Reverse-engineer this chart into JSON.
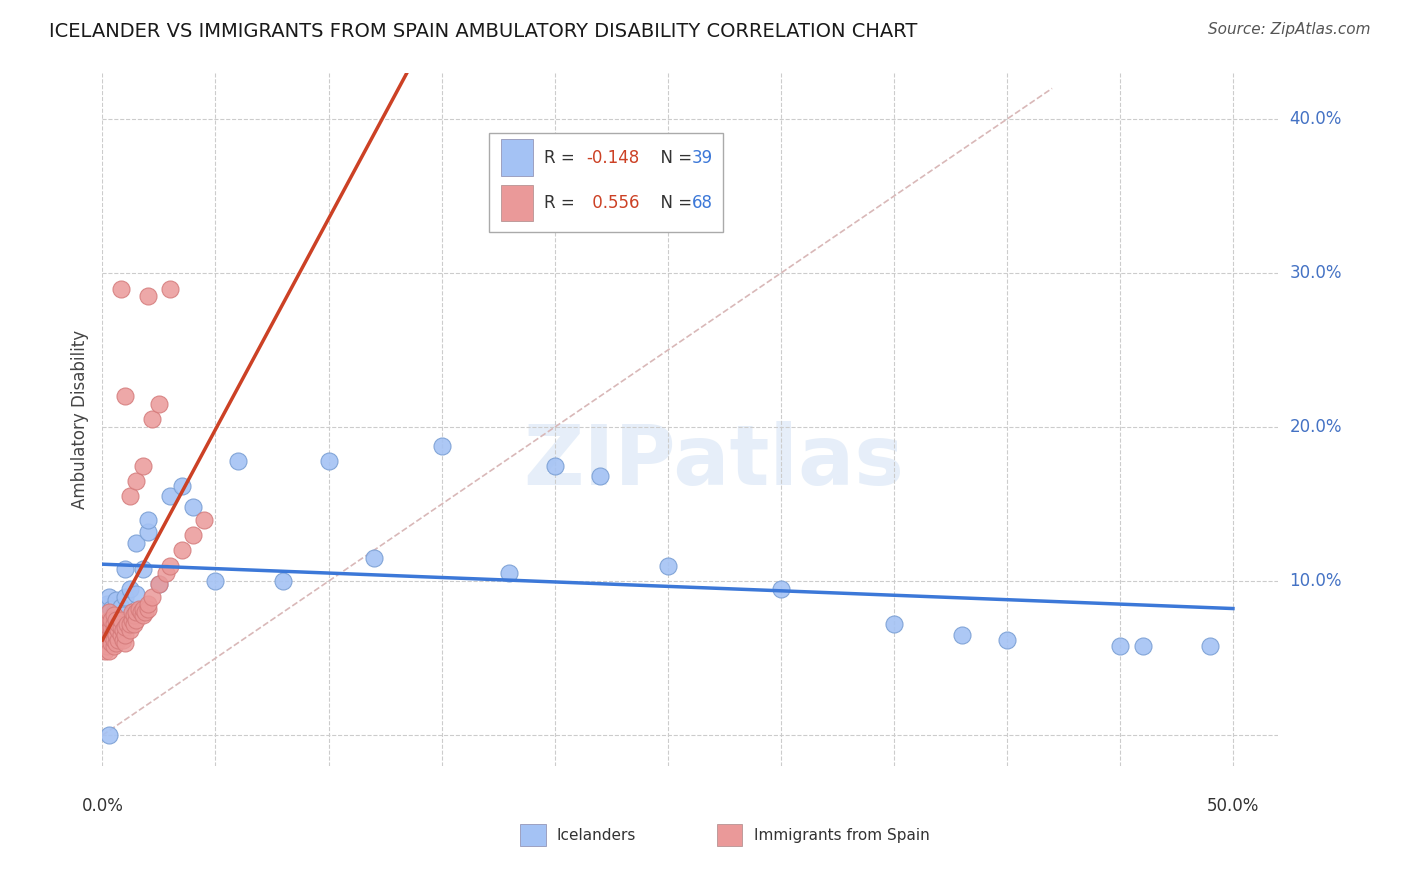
{
  "title": "ICELANDER VS IMMIGRANTS FROM SPAIN AMBULATORY DISABILITY CORRELATION CHART",
  "source": "Source: ZipAtlas.com",
  "ylabel": "Ambulatory Disability",
  "xlim": [
    0.0,
    0.52
  ],
  "ylim": [
    -0.02,
    0.43
  ],
  "grid_color": "#cccccc",
  "background_color": "#ffffff",
  "blue_color": "#a4c2f4",
  "pink_color": "#ea9999",
  "blue_line_color": "#3c78d8",
  "pink_line_color": "#cc4125",
  "diagonal_color": "#d9b8b8",
  "r1": "-0.148",
  "n1": "39",
  "r2": "0.556",
  "n2": "68",
  "icelanders_x": [
    0.002,
    0.003,
    0.004,
    0.005,
    0.006,
    0.007,
    0.008,
    0.009,
    0.01,
    0.012,
    0.015,
    0.018,
    0.02,
    0.025,
    0.03,
    0.035,
    0.04,
    0.06,
    0.08,
    0.1,
    0.15,
    0.2,
    0.25,
    0.3,
    0.35,
    0.4,
    0.45,
    0.49,
    0.003,
    0.007,
    0.01,
    0.015,
    0.02,
    0.05,
    0.12,
    0.18,
    0.22,
    0.38,
    0.46
  ],
  "icelanders_y": [
    0.085,
    0.09,
    0.082,
    0.08,
    0.088,
    0.075,
    0.083,
    0.078,
    0.09,
    0.095,
    0.125,
    0.108,
    0.132,
    0.098,
    0.155,
    0.162,
    0.148,
    0.178,
    0.1,
    0.178,
    0.188,
    0.175,
    0.11,
    0.095,
    0.072,
    0.062,
    0.058,
    0.058,
    0.0,
    0.07,
    0.108,
    0.092,
    0.14,
    0.1,
    0.115,
    0.105,
    0.168,
    0.065,
    0.058
  ],
  "spain_x": [
    0.001,
    0.001,
    0.001,
    0.002,
    0.002,
    0.002,
    0.002,
    0.003,
    0.003,
    0.003,
    0.003,
    0.003,
    0.004,
    0.004,
    0.004,
    0.004,
    0.005,
    0.005,
    0.005,
    0.005,
    0.005,
    0.006,
    0.006,
    0.006,
    0.006,
    0.007,
    0.007,
    0.007,
    0.008,
    0.008,
    0.008,
    0.009,
    0.009,
    0.01,
    0.01,
    0.01,
    0.011,
    0.012,
    0.012,
    0.013,
    0.013,
    0.014,
    0.014,
    0.015,
    0.015,
    0.016,
    0.017,
    0.018,
    0.018,
    0.019,
    0.02,
    0.02,
    0.022,
    0.025,
    0.028,
    0.03,
    0.035,
    0.04,
    0.045,
    0.012,
    0.015,
    0.018,
    0.022,
    0.025,
    0.02,
    0.03,
    0.008,
    0.01
  ],
  "spain_y": [
    0.055,
    0.06,
    0.065,
    0.058,
    0.062,
    0.068,
    0.072,
    0.065,
    0.07,
    0.075,
    0.08,
    0.055,
    0.06,
    0.065,
    0.07,
    0.075,
    0.058,
    0.062,
    0.068,
    0.072,
    0.078,
    0.06,
    0.065,
    0.07,
    0.075,
    0.062,
    0.068,
    0.072,
    0.065,
    0.07,
    0.075,
    0.062,
    0.068,
    0.06,
    0.065,
    0.07,
    0.072,
    0.068,
    0.072,
    0.075,
    0.08,
    0.072,
    0.078,
    0.075,
    0.08,
    0.082,
    0.08,
    0.078,
    0.082,
    0.08,
    0.082,
    0.085,
    0.09,
    0.098,
    0.105,
    0.11,
    0.12,
    0.13,
    0.14,
    0.155,
    0.165,
    0.175,
    0.205,
    0.215,
    0.285,
    0.29,
    0.29,
    0.22
  ]
}
